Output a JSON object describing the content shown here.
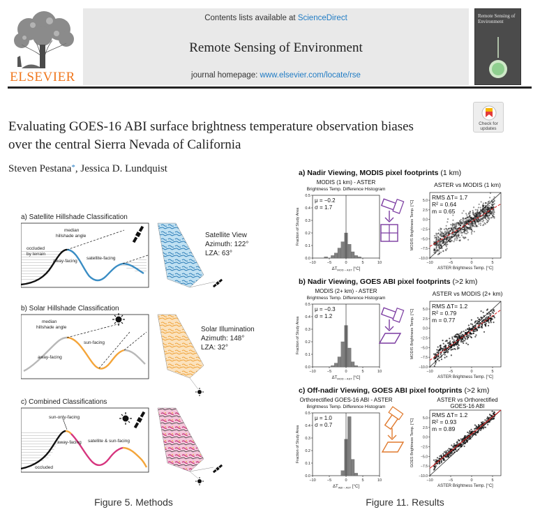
{
  "header": {
    "publisher": "ELSEVIER",
    "contents_prefix": "Contents lists available at ",
    "contents_link": "ScienceDirect",
    "journal_title": "Remote Sensing of Environment",
    "homepage_prefix": "journal homepage: ",
    "homepage_url": "www.elsevier.com/locate/rse",
    "cover_title": "Remote Sensing of Environment"
  },
  "crossmark": {
    "label_line1": "Check for",
    "label_line2": "updates"
  },
  "article": {
    "title_line1": "Evaluating GOES-16 ABI surface brightness temperature observation biases",
    "title_line2": "over the central Sierra Nevada of California",
    "authors_part1": "Steven Pestana",
    "author_mark": "*",
    "authors_part2": ", Jessica D. Lundquist"
  },
  "figure5": {
    "caption": "Figure 5. Methods",
    "panel_a": {
      "title": "a) Satellite Hillshade Classification",
      "labels": {
        "occluded_1": "occluded",
        "occluded_2": "by terrain",
        "median_1": "median",
        "median_2": "hillshade angle",
        "away": "away-facing",
        "facing": "satellite-facing"
      },
      "view_title": "Satellite View",
      "view_az": "Azimuth: 122°",
      "view_lza": "LZA: 63°"
    },
    "panel_b": {
      "title": "b) Solar Hillshade Classification",
      "labels": {
        "median_1": "median",
        "median_2": "hillshade angle",
        "sun": "sun-facing",
        "away": "away-facing"
      },
      "view_title": "Solar Illumination",
      "view_az": "Azimuth: 148°",
      "view_lza": "LZA: 32°"
    },
    "panel_c": {
      "title": "c) Combined Classifications",
      "labels": {
        "sun_only": "sun-only-facing",
        "away": "away-facing",
        "sat_sun": "satellite & sun-facing",
        "occluded": "occluded"
      }
    },
    "colors": {
      "satellite": "#3a8dc4",
      "sun": "#f4a53a",
      "combined": "#d6357e",
      "occluded": "#9a9a9a"
    }
  },
  "figure11": {
    "caption": "Figure 11. Results",
    "panel_a": {
      "heading_bold": "a) Nadir Viewing, MODIS pixel footprints",
      "heading_rest": " (1 km)",
      "hist_title_1": "MODIS (1 km) - ASTER",
      "hist_title_2": "Brightness Temp. Difference Histogram",
      "hist_mu": "μ = −0.2",
      "hist_sigma": "σ = 1.7",
      "hist_xlabel": "ΔT",
      "hist_xlabel_sub": "MOD − AST",
      "hist_xlabel_unit": " [°C]",
      "hist_ylabel": "Fraction of Study Area",
      "scatter_title": "ASTER vs MODIS (1 km)",
      "stat_rms": "RMS ΔT= 1.7",
      "stat_r2": "R² = 0.64",
      "stat_m": "m = 0.65",
      "scatter_xlabel": "ASTER Brightness Temp. [°C]",
      "scatter_ylabel": "MODIS Brightness Temp. [°C]"
    },
    "panel_b": {
      "heading_bold": "b) Nadir Viewing, GOES ABI pixel footprints",
      "heading_rest": " (>2 km)",
      "hist_title_1": "MODIS (2+ km) - ASTER",
      "hist_title_2": "Brightness Temp. Difference Histogram",
      "hist_mu": "μ = −0.3",
      "hist_sigma": "σ = 1.2",
      "hist_xlabel": "ΔT",
      "hist_xlabel_sub": "MOD − AST",
      "hist_xlabel_unit": " [°C]",
      "hist_ylabel": "Fraction of Study Area",
      "scatter_title": "ASTER vs MODIS (2+ km)",
      "stat_rms": "RMS ΔT= 1.2",
      "stat_r2": "R² = 0.79",
      "stat_m": "m = 0.77",
      "scatter_xlabel": "ASTER Brightness Temp. [°C]",
      "scatter_ylabel": "MODIS Brightness Temp. [°C]"
    },
    "panel_c": {
      "heading_bold": "c) Off-nadir Viewing, GOES ABI pixel footprints",
      "heading_rest": " (>2 km)",
      "hist_title_1": "Orthorectified GOES-16 ABI - ASTER",
      "hist_title_2": "Brightness Temp. Difference Histogram",
      "hist_mu": "μ = 1.0",
      "hist_sigma": "σ = 0.7",
      "hist_xlabel": "ΔT",
      "hist_xlabel_sub": "ABI − AST",
      "hist_xlabel_unit": " [°C]",
      "hist_ylabel": "Fraction of Study Area",
      "scatter_title_1": "ASTER vs Orthorectified",
      "scatter_title_2": "GOES-16 ABI",
      "stat_rms": "RMS ΔT= 1.2",
      "stat_r2": "R² = 0.93",
      "stat_m": "m = 0.89",
      "scatter_xlabel": "ASTER Brightness Temp. [°C]",
      "scatter_ylabel": "GOES Brightness Temp. [°C]"
    },
    "axes": {
      "hist_y_ticks": [
        "0.0",
        "0.1",
        "0.2",
        "0.3",
        "0.4",
        "0.5"
      ],
      "hist_x_ticks": [
        "−10",
        "−5",
        "0",
        "5",
        "10"
      ],
      "scatter_y_ticks": [
        "5.0",
        "2.5",
        "0.0",
        "−2.5",
        "−5.0",
        "−7.5",
        "−10.0"
      ],
      "scatter_x_ticks": [
        "−10",
        "−5",
        "0",
        "5"
      ]
    },
    "colors": {
      "modis": "#7a3aa0",
      "goes": "#e07a2e",
      "fit": "#e02020",
      "hist": "#808080"
    }
  },
  "chart_data": [
    {
      "type": "bar",
      "title": "MODIS (1 km) - ASTER",
      "xlabel": "ΔT MOD − AST [°C]",
      "ylabel": "Fraction of Study Area",
      "x": [
        -6,
        -4,
        -3,
        -2,
        -1,
        0,
        1,
        2,
        3,
        4
      ],
      "values": [
        0.01,
        0.02,
        0.04,
        0.08,
        0.13,
        0.2,
        0.11,
        0.05,
        0.02,
        0.01
      ],
      "ylim": [
        0,
        0.5
      ],
      "xlim": [
        -10,
        10
      ]
    },
    {
      "type": "bar",
      "title": "MODIS (2+ km) - ASTER",
      "xlabel": "ΔT MOD − AST [°C]",
      "ylabel": "Fraction of Study Area",
      "x": [
        -4,
        -3,
        -2,
        -1,
        0,
        1,
        2,
        3
      ],
      "values": [
        0.01,
        0.03,
        0.08,
        0.2,
        0.33,
        0.15,
        0.04,
        0.01
      ],
      "ylim": [
        0,
        0.5
      ],
      "xlim": [
        -10,
        10
      ]
    },
    {
      "type": "bar",
      "title": "Orthorectified GOES-16 ABI - ASTER",
      "xlabel": "ΔT ABI − AST [°C]",
      "ylabel": "Fraction of Study Area",
      "x": [
        -1,
        0,
        1,
        2,
        3
      ],
      "values": [
        0.04,
        0.29,
        0.47,
        0.13,
        0.02
      ],
      "ylim": [
        0,
        0.5
      ],
      "xlim": [
        -10,
        10
      ]
    },
    {
      "type": "scatter",
      "title": "ASTER vs MODIS (1 km)",
      "xlabel": "ASTER Brightness Temp. [°C]",
      "ylabel": "MODIS Brightness Temp. [°C]",
      "xlim": [
        -10,
        7
      ],
      "ylim": [
        -10,
        7
      ],
      "annotations": [
        "RMS ΔT= 1.7",
        "R² = 0.64",
        "m = 0.65"
      ],
      "fit_slope": 0.65,
      "fit_intercept": -0.5,
      "point_spread": 1.7
    },
    {
      "type": "scatter",
      "title": "ASTER vs MODIS (2+ km)",
      "xlabel": "ASTER Brightness Temp. [°C]",
      "ylabel": "MODIS Brightness Temp. [°C]",
      "xlim": [
        -10,
        7
      ],
      "ylim": [
        -10,
        7
      ],
      "annotations": [
        "RMS ΔT= 1.2",
        "R² = 0.79",
        "m = 0.77"
      ],
      "fit_slope": 0.77,
      "fit_intercept": -0.6,
      "point_spread": 1.2
    },
    {
      "type": "scatter",
      "title": "ASTER vs Orthorectified GOES-16 ABI",
      "xlabel": "ASTER Brightness Temp. [°C]",
      "ylabel": "GOES Brightness Temp. [°C]",
      "xlim": [
        -10,
        7
      ],
      "ylim": [
        -10,
        7
      ],
      "annotations": [
        "RMS ΔT= 1.2",
        "R² = 0.93",
        "m = 0.89"
      ],
      "fit_slope": 0.89,
      "fit_intercept": 0.8,
      "point_spread": 0.7
    }
  ]
}
